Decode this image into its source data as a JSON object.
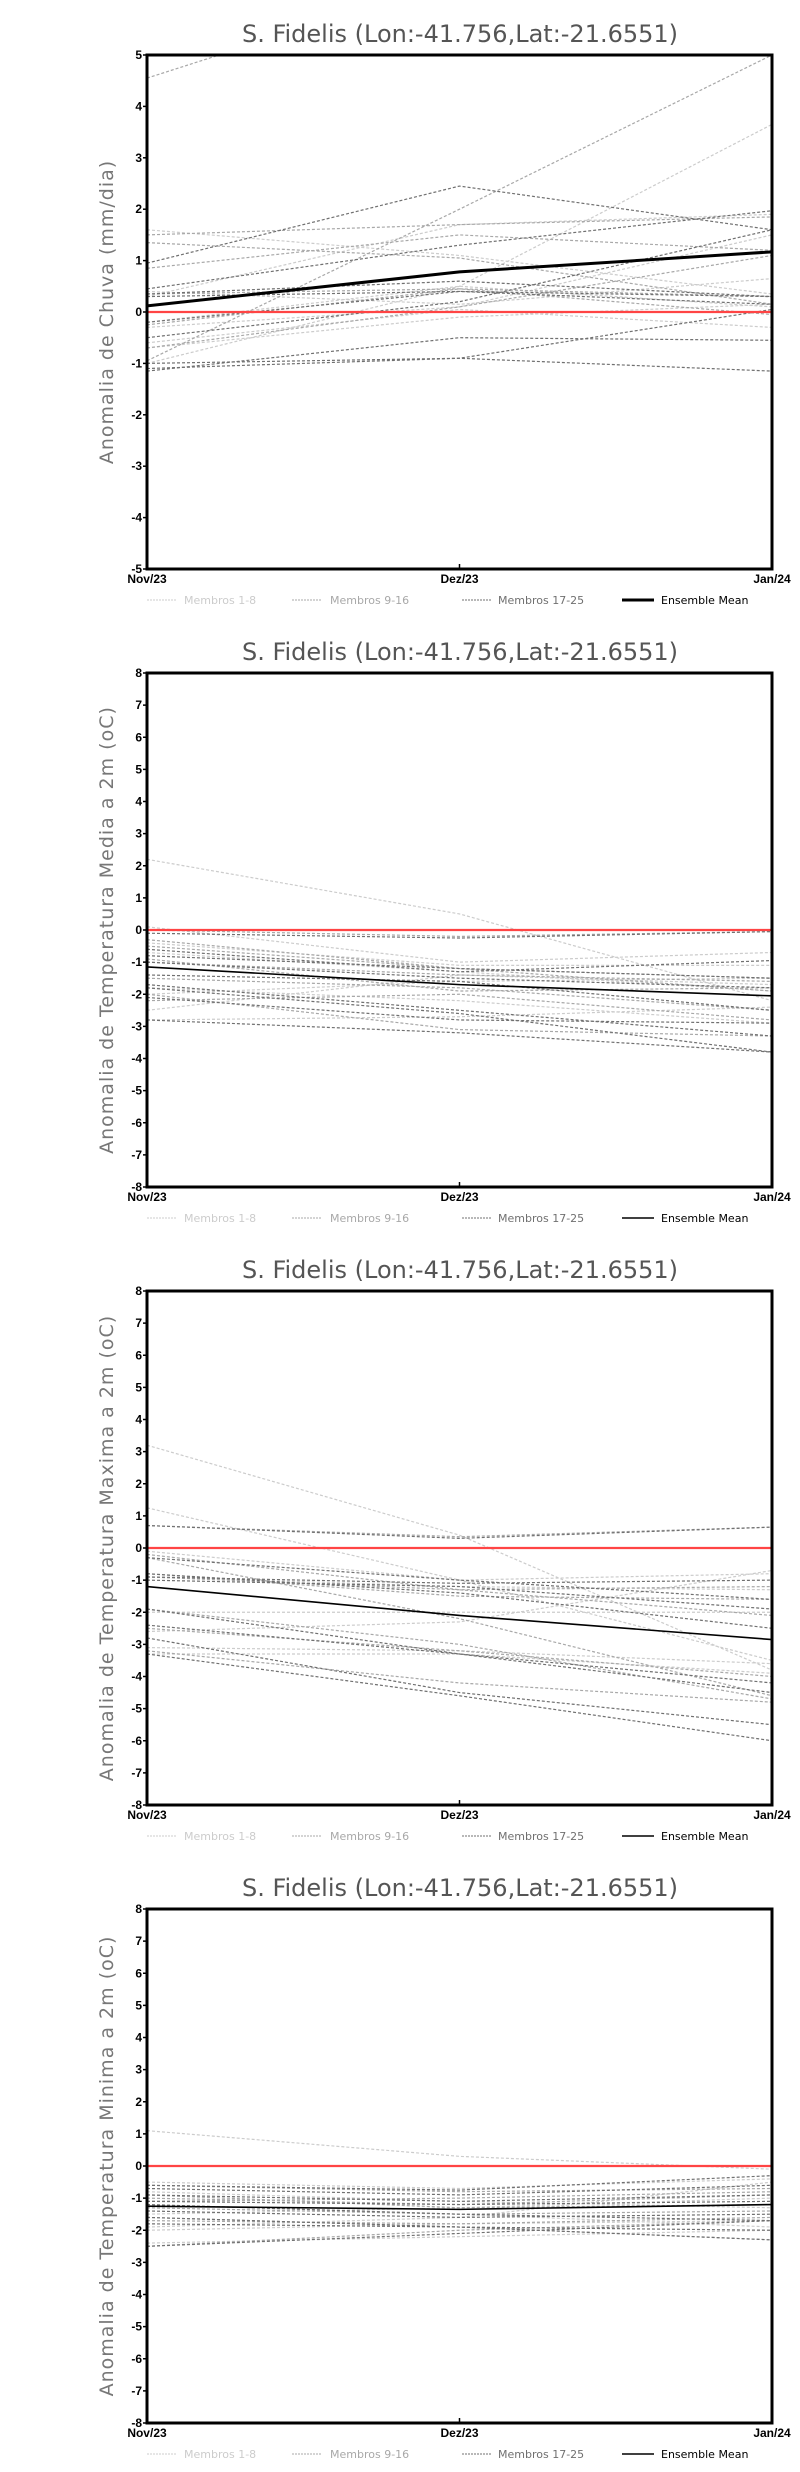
{
  "legend": [
    {
      "label": "Membros 1-8",
      "color": "#cccccc"
    },
    {
      "label": "Membros 9-16",
      "color": "#a8a8a8"
    },
    {
      "label": "Membros 17-25",
      "color": "#707070"
    },
    {
      "label": "Ensemble Mean",
      "color": "#000000"
    }
  ],
  "zero_line_color": "#ff4444",
  "chart_data": [
    {
      "type": "line",
      "title": "S. Fidelis (Lon:-41.756,Lat:-21.6551)",
      "ylabel": "Anomalia de Chuva (mm/dia)",
      "xlabel": "",
      "categories": [
        "Nov/23",
        "Dez/23",
        "Jan/24"
      ],
      "ylim": [
        -5,
        5
      ],
      "yticks": [
        -5,
        -4,
        -3,
        -2,
        -1,
        0,
        1,
        2,
        3,
        4,
        5
      ],
      "ensemble_mean": [
        0.12,
        0.78,
        1.17
      ],
      "mean_width": "thick",
      "members_1_8": [
        [
          -1.0,
          0.5,
          3.65
        ],
        [
          1.6,
          1.1,
          0.35
        ],
        [
          -0.7,
          -0.1,
          0.15
        ],
        [
          -0.3,
          0.1,
          1.5
        ],
        [
          0.4,
          0.15,
          0.65
        ],
        [
          -0.6,
          0.05,
          -0.3
        ],
        [
          -0.2,
          0.5,
          0.1
        ],
        [
          0.3,
          1.7,
          1.9
        ]
      ],
      "members_9_16": [
        [
          4.55,
          6.5,
          8.0
        ],
        [
          -0.95,
          2.0,
          5.0
        ],
        [
          1.5,
          1.7,
          1.85
        ],
        [
          0.85,
          1.5,
          1.2
        ],
        [
          -0.25,
          0.45,
          0.3
        ],
        [
          0.35,
          0.45,
          -0.05
        ],
        [
          -0.7,
          0.1,
          1.1
        ],
        [
          1.35,
          1.05,
          0.15
        ]
      ],
      "members_17_25": [
        [
          0.95,
          2.45,
          1.6
        ],
        [
          0.45,
          1.3,
          1.97
        ],
        [
          0.35,
          0.6,
          0.3
        ],
        [
          -0.5,
          0.2,
          1.6
        ],
        [
          -0.2,
          0.4,
          0.3
        ],
        [
          -1.0,
          -0.9,
          -1.15
        ],
        [
          -1.15,
          -0.5,
          -0.55
        ],
        [
          -1.1,
          -0.9,
          0.05
        ],
        [
          0.3,
          0.4,
          0.15
        ]
      ]
    },
    {
      "type": "line",
      "title": "S. Fidelis (Lon:-41.756,Lat:-21.6551)",
      "ylabel": "Anomalia de Temperatura Media a 2m (oC)",
      "xlabel": "",
      "categories": [
        "Nov/23",
        "Dez/23",
        "Jan/24"
      ],
      "ylim": [
        -8,
        8
      ],
      "yticks": [
        -8,
        -7,
        -6,
        -5,
        -4,
        -3,
        -2,
        -1,
        0,
        1,
        2,
        3,
        4,
        5,
        6,
        7,
        8
      ],
      "ensemble_mean": [
        -1.15,
        -1.7,
        -2.05
      ],
      "mean_width": "normal",
      "members_1_8": [
        [
          2.2,
          0.5,
          -2.2
        ],
        [
          0.1,
          -1.0,
          -0.7
        ],
        [
          -0.4,
          -1.1,
          -1.1
        ],
        [
          -2.5,
          -1.4,
          -1.7
        ],
        [
          -2.8,
          -2.7,
          -2.4
        ],
        [
          -2.0,
          -1.6,
          -1.5
        ],
        [
          -0.7,
          -1.3,
          -1.9
        ],
        [
          -1.8,
          -2.2,
          -2.9
        ]
      ],
      "members_9_16": [
        [
          0.0,
          -0.2,
          -0.05
        ],
        [
          -0.5,
          -1.2,
          -1.5
        ],
        [
          -0.9,
          -1.9,
          -1.8
        ],
        [
          -1.5,
          -1.8,
          -2.5
        ],
        [
          -2.2,
          -2.0,
          -2.8
        ],
        [
          -1.0,
          -1.4,
          -1.6
        ],
        [
          -0.3,
          -1.2,
          -1.9
        ],
        [
          -2.0,
          -3.1,
          -3.3
        ]
      ],
      "members_17_25": [
        [
          -0.1,
          -0.25,
          -0.05
        ],
        [
          -0.6,
          -1.3,
          -0.95
        ],
        [
          -1.0,
          -1.5,
          -1.8
        ],
        [
          -1.7,
          -2.5,
          -3.3
        ],
        [
          -1.8,
          -2.6,
          -3.8
        ],
        [
          -2.8,
          -3.2,
          -3.8
        ],
        [
          -1.4,
          -1.6,
          -2.5
        ],
        [
          -2.1,
          -2.8,
          -2.9
        ],
        [
          -0.8,
          -1.2,
          -1.5
        ]
      ]
    },
    {
      "type": "line",
      "title": "S. Fidelis (Lon:-41.756,Lat:-21.6551)",
      "ylabel": "Anomalia de Temperatura Maxima a 2m (oC)",
      "xlabel": "",
      "categories": [
        "Nov/23",
        "Dez/23",
        "Jan/24"
      ],
      "ylim": [
        -8,
        8
      ],
      "yticks": [
        -8,
        -7,
        -6,
        -5,
        -4,
        -3,
        -2,
        -1,
        0,
        1,
        2,
        3,
        4,
        5,
        6,
        7,
        8
      ],
      "ensemble_mean": [
        -1.2,
        -2.1,
        -2.85
      ],
      "mean_width": "normal",
      "members_1_8": [
        [
          3.2,
          0.4,
          -3.8
        ],
        [
          1.25,
          -1.0,
          -3.5
        ],
        [
          -0.1,
          -1.0,
          -0.8
        ],
        [
          -2.6,
          -2.3,
          -0.7
        ],
        [
          -3.3,
          -3.3,
          -3.9
        ],
        [
          -2.0,
          -2.0,
          -2.0
        ],
        [
          -0.9,
          -1.2,
          -1.3
        ],
        [
          -3.1,
          -3.2,
          -3.6
        ]
      ],
      "members_9_16": [
        [
          0.7,
          0.35,
          0.65
        ],
        [
          -0.2,
          -1.3,
          -2.1
        ],
        [
          -0.9,
          -1.3,
          -1.2
        ],
        [
          -1.9,
          -3.0,
          -4.7
        ],
        [
          -2.5,
          -3.2,
          -4.0
        ],
        [
          -0.8,
          -1.5,
          -1.6
        ],
        [
          -3.2,
          -4.2,
          -4.8
        ],
        [
          -0.3,
          -2.2,
          -4.6
        ]
      ],
      "members_17_25": [
        [
          0.7,
          0.3,
          0.65
        ],
        [
          -0.3,
          -1.0,
          -1.6
        ],
        [
          -0.9,
          -1.1,
          -1.0
        ],
        [
          -1.9,
          -3.3,
          -4.5
        ],
        [
          -2.8,
          -4.5,
          -5.5
        ],
        [
          -3.3,
          -4.6,
          -6.0
        ],
        [
          -2.4,
          -3.3,
          -4.2
        ],
        [
          -1.0,
          -1.2,
          -1.9
        ],
        [
          -0.8,
          -1.4,
          -2.5
        ]
      ]
    },
    {
      "type": "line",
      "title": "S. Fidelis (Lon:-41.756,Lat:-21.6551)",
      "ylabel": "Anomalia de Temperatura Minima a 2m (oC)",
      "xlabel": "",
      "categories": [
        "Nov/23",
        "Dez/23",
        "Jan/24"
      ],
      "ylim": [
        -8,
        8
      ],
      "yticks": [
        -8,
        -7,
        -6,
        -5,
        -4,
        -3,
        -2,
        -1,
        0,
        1,
        2,
        3,
        4,
        5,
        6,
        7,
        8
      ],
      "ensemble_mean": [
        -1.25,
        -1.35,
        -1.2
      ],
      "mean_width": "normal",
      "members_1_8": [
        [
          1.1,
          0.3,
          -0.1
        ],
        [
          -0.5,
          -0.7,
          -0.4
        ],
        [
          -1.9,
          -1.6,
          -0.5
        ],
        [
          -1.5,
          -1.3,
          -1.0
        ],
        [
          -2.0,
          -1.8,
          -1.7
        ],
        [
          -0.8,
          -1.1,
          -1.3
        ],
        [
          -1.2,
          -1.5,
          -1.9
        ],
        [
          -2.4,
          -2.2,
          -2.0
        ]
      ],
      "members_9_16": [
        [
          -0.6,
          -0.8,
          -0.7
        ],
        [
          -1.0,
          -1.2,
          -0.9
        ],
        [
          -1.3,
          -1.5,
          -1.4
        ],
        [
          -1.7,
          -1.8,
          -1.6
        ],
        [
          -2.5,
          -2.0,
          -1.7
        ],
        [
          -0.9,
          -1.3,
          -1.2
        ],
        [
          -1.6,
          -1.9,
          -2.3
        ],
        [
          -1.1,
          -1.0,
          -0.8
        ]
      ],
      "members_17_25": [
        [
          -0.6,
          -0.75,
          -0.3
        ],
        [
          -0.9,
          -1.1,
          -0.9
        ],
        [
          -1.1,
          -1.2,
          -1.1
        ],
        [
          -1.4,
          -1.6,
          -1.5
        ],
        [
          -2.5,
          -2.1,
          -1.7
        ],
        [
          -1.8,
          -1.9,
          -2.0
        ],
        [
          -0.7,
          -0.9,
          -0.6
        ],
        [
          -1.2,
          -1.5,
          -1.7
        ],
        [
          -1.6,
          -1.9,
          -2.3
        ]
      ]
    }
  ]
}
